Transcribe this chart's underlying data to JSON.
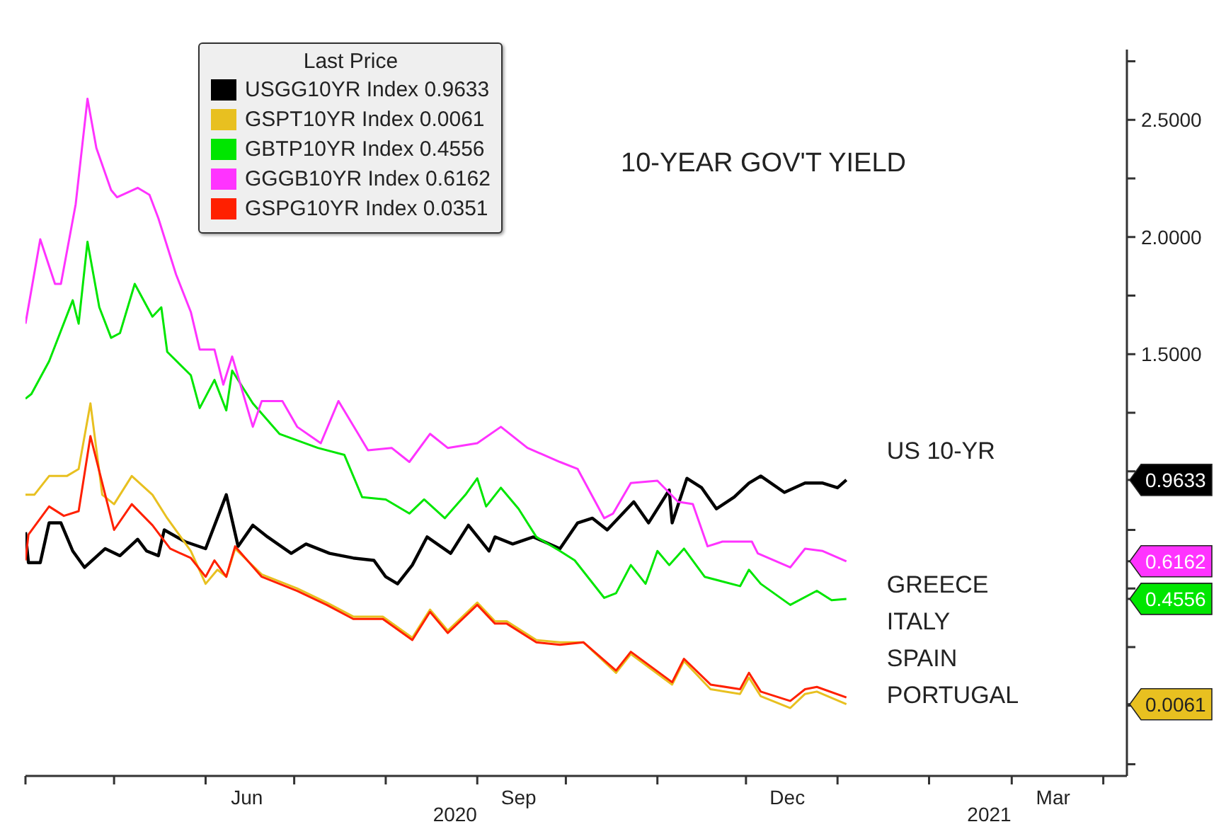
{
  "chart_data": {
    "type": "line",
    "title": "10-YEAR GOV'T YIELD",
    "legend_title": "Last Price",
    "legend": "top left",
    "xlim": [
      "2020-04-01",
      "2021-04-09"
    ],
    "xticks": [
      {
        "value": "2020-04-01",
        "label": null
      },
      {
        "value": "2020-05-01",
        "label": null
      },
      {
        "value": "2020-06-01",
        "label": null
      },
      {
        "value": "2020-06-15",
        "label": "Jun"
      },
      {
        "value": "2020-07-01",
        "label": null
      },
      {
        "value": "2020-08-01",
        "label": null
      },
      {
        "value": "2020-09-01",
        "label": null
      },
      {
        "value": "2020-09-15",
        "label": "Sep"
      },
      {
        "value": "2020-10-01",
        "label": null
      },
      {
        "value": "2020-11-01",
        "label": null
      },
      {
        "value": "2020-12-01",
        "label": null
      },
      {
        "value": "2020-12-15",
        "label": "Dec"
      },
      {
        "value": "2021-01-01",
        "label": null
      },
      {
        "value": "2021-02-01",
        "label": null
      },
      {
        "value": "2021-03-01",
        "label": null
      },
      {
        "value": "2021-03-15",
        "label": "Mar"
      },
      {
        "value": "2021-04-01",
        "label": null
      }
    ],
    "ylim": [
      -0.3,
      2.8
    ],
    "yticks": [
      {
        "value": -0.25,
        "label": null
      },
      {
        "value": 0,
        "label": null
      },
      {
        "value": 0.0061,
        "label": "0.0061"
      },
      {
        "value": 0.25,
        "label": null
      },
      {
        "value": 0.4556,
        "label": "0.4556"
      },
      {
        "value": 0.5,
        "label": null
      },
      {
        "value": 0.6162,
        "label": "0.6162"
      },
      {
        "value": 0.75,
        "label": null
      },
      {
        "value": 0.9633,
        "label": "0.9633"
      },
      {
        "value": 1,
        "label": null
      },
      {
        "value": 1.25,
        "label": null
      },
      {
        "value": 1.5,
        "label": "1.5000"
      },
      {
        "value": 1.75,
        "label": null
      },
      {
        "value": 2,
        "label": "2.0000"
      },
      {
        "value": 2.25,
        "label": null
      },
      {
        "value": 2.5,
        "label": "2.5000"
      },
      {
        "value": 2.75,
        "label": null
      }
    ],
    "annotations": [
      "US 10-YR",
      "GREECE",
      "ITALY",
      "SPAIN",
      "PORTUGAL",
      "2020",
      "2021"
    ],
    "series": [
      {
        "name": "USGG10YR Index 0.9633",
        "color": "#000000",
        "x": [
          "2020-04-01",
          "2020-04-02",
          "2020-04-06",
          "2020-04-09",
          "2020-04-13",
          "2020-04-17",
          "2020-04-21",
          "2020-04-28",
          "2020-05-03",
          "2020-05-09",
          "2020-05-12",
          "2020-05-16",
          "2020-05-18",
          "2020-05-25",
          "2020-06-01",
          "2020-06-08",
          "2020-06-12",
          "2020-06-17",
          "2020-06-22",
          "2020-06-30",
          "2020-07-05",
          "2020-07-13",
          "2020-07-21",
          "2020-07-28",
          "2020-08-01",
          "2020-08-05",
          "2020-08-10",
          "2020-08-15",
          "2020-08-23",
          "2020-08-29",
          "2020-09-05",
          "2020-09-07",
          "2020-09-13",
          "2020-09-20",
          "2020-09-29",
          "2020-10-05",
          "2020-10-10",
          "2020-10-15",
          "2020-10-24",
          "2020-10-29",
          "2020-11-05",
          "2020-11-06",
          "2020-11-11",
          "2020-11-16",
          "2020-11-21",
          "2020-11-27",
          "2020-12-02",
          "2020-12-06",
          "2020-12-14",
          "2020-12-21",
          "2020-12-27",
          "2021-01-01",
          "2021-01-04"
        ],
        "values": [
          0.74,
          0.61,
          0.61,
          0.78,
          0.78,
          0.66,
          0.59,
          0.67,
          0.64,
          0.71,
          0.66,
          0.64,
          0.75,
          0.7,
          0.67,
          0.9,
          0.68,
          0.77,
          0.72,
          0.65,
          0.69,
          0.65,
          0.63,
          0.62,
          0.55,
          0.52,
          0.6,
          0.72,
          0.65,
          0.77,
          0.66,
          0.72,
          0.69,
          0.72,
          0.67,
          0.78,
          0.8,
          0.75,
          0.87,
          0.78,
          0.92,
          0.78,
          0.97,
          0.93,
          0.84,
          0.89,
          0.95,
          0.98,
          0.91,
          0.95,
          0.95,
          0.93,
          0.9633
        ]
      },
      {
        "name": "GSPT10YR Index 0.0061",
        "color": "#e8c020",
        "x": [
          "2020-04-01",
          "2020-04-04",
          "2020-04-09",
          "2020-04-15",
          "2020-04-19",
          "2020-04-23",
          "2020-04-27",
          "2020-05-01",
          "2020-05-07",
          "2020-05-14",
          "2020-05-19",
          "2020-05-27",
          "2020-06-01",
          "2020-06-05",
          "2020-06-08",
          "2020-06-11",
          "2020-06-20",
          "2020-07-02",
          "2020-07-12",
          "2020-07-21",
          "2020-07-31",
          "2020-08-10",
          "2020-08-16",
          "2020-08-22",
          "2020-09-01",
          "2020-09-07",
          "2020-09-11",
          "2020-09-21",
          "2020-09-29",
          "2020-10-07",
          "2020-10-18",
          "2020-10-23",
          "2020-11-06",
          "2020-11-10",
          "2020-11-19",
          "2020-11-29",
          "2020-12-02",
          "2020-12-06",
          "2020-12-16",
          "2020-12-21",
          "2020-12-25",
          "2021-01-04"
        ],
        "values": [
          0.9,
          0.9,
          0.98,
          0.98,
          1.01,
          1.29,
          0.9,
          0.86,
          0.98,
          0.9,
          0.8,
          0.66,
          0.52,
          0.58,
          0.55,
          0.67,
          0.56,
          0.5,
          0.44,
          0.38,
          0.38,
          0.29,
          0.41,
          0.32,
          0.44,
          0.36,
          0.36,
          0.28,
          0.27,
          0.27,
          0.14,
          0.22,
          0.09,
          0.19,
          0.07,
          0.05,
          0.12,
          0.04,
          -0.01,
          0.05,
          0.06,
          0.0061
        ]
      },
      {
        "name": "GBTP10YR Index 0.4556",
        "color": "#00e600",
        "x": [
          "2020-04-01",
          "2020-04-03",
          "2020-04-09",
          "2020-04-17",
          "2020-04-19",
          "2020-04-22",
          "2020-04-26",
          "2020-04-30",
          "2020-05-03",
          "2020-05-08",
          "2020-05-14",
          "2020-05-17",
          "2020-05-19",
          "2020-05-27",
          "2020-05-30",
          "2020-06-04",
          "2020-06-08",
          "2020-06-10",
          "2020-06-17",
          "2020-06-26",
          "2020-07-09",
          "2020-07-18",
          "2020-07-24",
          "2020-08-01",
          "2020-08-09",
          "2020-08-14",
          "2020-08-21",
          "2020-08-28",
          "2020-09-01",
          "2020-09-04",
          "2020-09-09",
          "2020-09-15",
          "2020-09-21",
          "2020-09-29",
          "2020-10-04",
          "2020-10-14",
          "2020-10-18",
          "2020-10-23",
          "2020-10-28",
          "2020-11-01",
          "2020-11-05",
          "2020-11-10",
          "2020-11-17",
          "2020-11-29",
          "2020-12-02",
          "2020-12-06",
          "2020-12-16",
          "2020-12-25",
          "2020-12-30",
          "2021-01-04"
        ],
        "values": [
          1.31,
          1.33,
          1.47,
          1.73,
          1.63,
          1.98,
          1.7,
          1.57,
          1.59,
          1.8,
          1.66,
          1.7,
          1.51,
          1.41,
          1.27,
          1.39,
          1.26,
          1.43,
          1.29,
          1.16,
          1.1,
          1.07,
          0.89,
          0.88,
          0.82,
          0.88,
          0.8,
          0.9,
          0.97,
          0.85,
          0.93,
          0.84,
          0.72,
          0.66,
          0.62,
          0.46,
          0.48,
          0.6,
          0.52,
          0.66,
          0.6,
          0.67,
          0.55,
          0.51,
          0.58,
          0.52,
          0.43,
          0.49,
          0.45,
          0.4556
        ]
      },
      {
        "name": "GGGB10YR Index 0.6162",
        "color": "#ff33ff",
        "x": [
          "2020-04-01",
          "2020-04-06",
          "2020-04-11",
          "2020-04-13",
          "2020-04-18",
          "2020-04-22",
          "2020-04-25",
          "2020-04-30",
          "2020-05-02",
          "2020-05-09",
          "2020-05-13",
          "2020-05-16",
          "2020-05-22",
          "2020-05-27",
          "2020-05-30",
          "2020-06-04",
          "2020-06-07",
          "2020-06-10",
          "2020-06-17",
          "2020-06-20",
          "2020-06-27",
          "2020-07-02",
          "2020-07-10",
          "2020-07-16",
          "2020-07-26",
          "2020-08-03",
          "2020-08-09",
          "2020-08-16",
          "2020-08-22",
          "2020-09-01",
          "2020-09-09",
          "2020-09-18",
          "2020-09-29",
          "2020-10-05",
          "2020-10-14",
          "2020-10-17",
          "2020-10-23",
          "2020-11-01",
          "2020-11-08",
          "2020-11-13",
          "2020-11-18",
          "2020-11-23",
          "2020-12-03",
          "2020-12-05",
          "2020-12-16",
          "2020-12-21",
          "2020-12-27",
          "2021-01-04"
        ],
        "values": [
          1.63,
          1.99,
          1.8,
          1.8,
          2.14,
          2.59,
          2.38,
          2.2,
          2.17,
          2.21,
          2.18,
          2.08,
          1.84,
          1.68,
          1.52,
          1.52,
          1.37,
          1.49,
          1.19,
          1.3,
          1.3,
          1.19,
          1.12,
          1.3,
          1.09,
          1.1,
          1.04,
          1.16,
          1.1,
          1.12,
          1.19,
          1.1,
          1.04,
          1.01,
          0.8,
          0.82,
          0.95,
          0.96,
          0.87,
          0.86,
          0.68,
          0.7,
          0.7,
          0.65,
          0.59,
          0.67,
          0.66,
          0.6162
        ]
      },
      {
        "name": "GSPG10YR Index 0.0351",
        "color": "#ff2000",
        "x": [
          "2020-04-01",
          "2020-04-02",
          "2020-04-09",
          "2020-04-14",
          "2020-04-19",
          "2020-04-23",
          "2020-05-01",
          "2020-05-07",
          "2020-05-14",
          "2020-05-20",
          "2020-05-27",
          "2020-06-01",
          "2020-06-04",
          "2020-06-08",
          "2020-06-11",
          "2020-06-20",
          "2020-07-02",
          "2020-07-12",
          "2020-07-21",
          "2020-07-31",
          "2020-08-10",
          "2020-08-16",
          "2020-08-22",
          "2020-09-01",
          "2020-09-07",
          "2020-09-11",
          "2020-09-21",
          "2020-09-29",
          "2020-10-07",
          "2020-10-18",
          "2020-10-23",
          "2020-11-06",
          "2020-11-10",
          "2020-11-19",
          "2020-11-29",
          "2020-12-02",
          "2020-12-06",
          "2020-12-16",
          "2020-12-21",
          "2020-12-25",
          "2021-01-04"
        ],
        "values": [
          0.62,
          0.73,
          0.85,
          0.81,
          0.83,
          1.15,
          0.75,
          0.86,
          0.77,
          0.67,
          0.63,
          0.55,
          0.62,
          0.55,
          0.68,
          0.55,
          0.49,
          0.43,
          0.37,
          0.37,
          0.28,
          0.4,
          0.31,
          0.43,
          0.35,
          0.35,
          0.27,
          0.26,
          0.27,
          0.15,
          0.23,
          0.1,
          0.2,
          0.09,
          0.07,
          0.14,
          0.06,
          0.02,
          0.07,
          0.08,
          0.0351
        ]
      }
    ]
  }
}
